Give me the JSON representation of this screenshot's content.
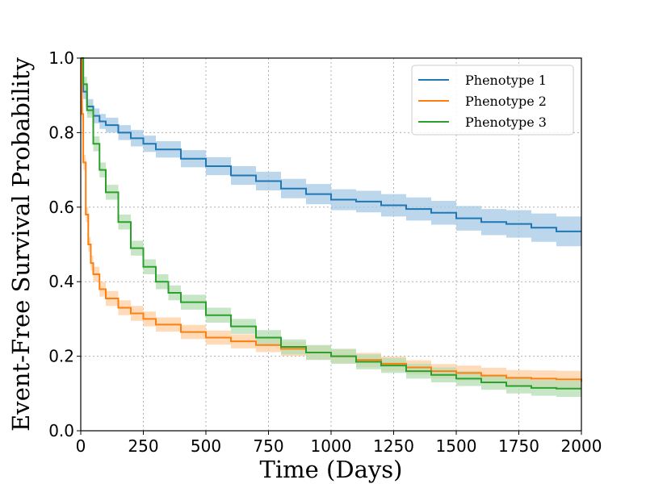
{
  "chart_data": {
    "type": "line",
    "title": "",
    "xlabel": "Time (Days)",
    "ylabel": "Event-Free Survival Probability",
    "xlim": [
      0,
      2000
    ],
    "ylim": [
      0.0,
      1.0
    ],
    "xticks": [
      0,
      250,
      500,
      750,
      1000,
      1250,
      1500,
      1750,
      2000
    ],
    "xtick_labels": [
      "0",
      "250",
      "500",
      "750",
      "1000",
      "1250",
      "1500",
      "1750",
      "2000"
    ],
    "yticks": [
      0.0,
      0.2,
      0.4,
      0.6,
      0.8,
      1.0
    ],
    "ytick_labels": [
      "0.0",
      "0.2",
      "0.4",
      "0.6",
      "0.8",
      "1.0"
    ],
    "grid": true,
    "legend_position": "top-right",
    "series": [
      {
        "name": "Phenotype 1",
        "color": "#1f77b4",
        "band_color": "#a6c8e4",
        "x": [
          0,
          10,
          25,
          50,
          75,
          100,
          150,
          200,
          250,
          300,
          400,
          500,
          600,
          700,
          800,
          900,
          1000,
          1100,
          1200,
          1300,
          1400,
          1500,
          1600,
          1700,
          1800,
          1900,
          2000
        ],
        "y": [
          1.0,
          0.91,
          0.87,
          0.845,
          0.83,
          0.82,
          0.8,
          0.785,
          0.77,
          0.755,
          0.73,
          0.71,
          0.685,
          0.67,
          0.65,
          0.635,
          0.62,
          0.615,
          0.605,
          0.595,
          0.585,
          0.57,
          0.56,
          0.555,
          0.545,
          0.535,
          0.535
        ],
        "lower": [
          1.0,
          0.89,
          0.85,
          0.825,
          0.81,
          0.8,
          0.78,
          0.763,
          0.748,
          0.733,
          0.707,
          0.686,
          0.66,
          0.645,
          0.624,
          0.608,
          0.592,
          0.586,
          0.575,
          0.564,
          0.553,
          0.537,
          0.525,
          0.518,
          0.507,
          0.495,
          0.493
        ],
        "upper": [
          1.0,
          0.93,
          0.89,
          0.865,
          0.85,
          0.84,
          0.82,
          0.807,
          0.792,
          0.777,
          0.753,
          0.734,
          0.71,
          0.695,
          0.676,
          0.662,
          0.648,
          0.644,
          0.635,
          0.626,
          0.617,
          0.603,
          0.595,
          0.592,
          0.583,
          0.575,
          0.577
        ]
      },
      {
        "name": "Phenotype 2",
        "color": "#ff7f0e",
        "band_color": "#ffcfa3",
        "x": [
          0,
          5,
          10,
          20,
          30,
          40,
          50,
          75,
          100,
          150,
          200,
          250,
          300,
          400,
          500,
          600,
          700,
          800,
          900,
          1000,
          1100,
          1200,
          1300,
          1400,
          1500,
          1600,
          1700,
          1800,
          1900,
          2000
        ],
        "y": [
          1.0,
          0.85,
          0.72,
          0.58,
          0.5,
          0.45,
          0.42,
          0.38,
          0.355,
          0.33,
          0.315,
          0.3,
          0.285,
          0.265,
          0.25,
          0.24,
          0.23,
          0.22,
          0.21,
          0.2,
          0.19,
          0.18,
          0.17,
          0.16,
          0.155,
          0.148,
          0.142,
          0.14,
          0.138,
          0.132
        ],
        "lower": [
          1.0,
          0.83,
          0.7,
          0.56,
          0.48,
          0.43,
          0.4,
          0.36,
          0.335,
          0.31,
          0.295,
          0.28,
          0.266,
          0.246,
          0.231,
          0.221,
          0.211,
          0.201,
          0.191,
          0.181,
          0.171,
          0.161,
          0.151,
          0.141,
          0.135,
          0.127,
          0.121,
          0.118,
          0.115,
          0.108
        ],
        "upper": [
          1.0,
          0.87,
          0.74,
          0.6,
          0.52,
          0.47,
          0.44,
          0.4,
          0.375,
          0.35,
          0.335,
          0.32,
          0.304,
          0.284,
          0.269,
          0.259,
          0.249,
          0.239,
          0.229,
          0.219,
          0.209,
          0.199,
          0.189,
          0.179,
          0.175,
          0.169,
          0.163,
          0.162,
          0.161,
          0.156
        ]
      },
      {
        "name": "Phenotype 3",
        "color": "#2ca02c",
        "band_color": "#b3deb3",
        "x": [
          0,
          10,
          25,
          50,
          75,
          100,
          150,
          200,
          250,
          300,
          350,
          400,
          500,
          600,
          700,
          800,
          900,
          1000,
          1100,
          1200,
          1300,
          1400,
          1500,
          1600,
          1700,
          1800,
          1900,
          2000
        ],
        "y": [
          1.0,
          0.93,
          0.86,
          0.77,
          0.7,
          0.64,
          0.56,
          0.49,
          0.44,
          0.4,
          0.37,
          0.345,
          0.31,
          0.28,
          0.25,
          0.225,
          0.21,
          0.2,
          0.185,
          0.175,
          0.16,
          0.15,
          0.14,
          0.13,
          0.12,
          0.115,
          0.113,
          0.113
        ],
        "lower": [
          1.0,
          0.91,
          0.84,
          0.75,
          0.68,
          0.62,
          0.54,
          0.47,
          0.42,
          0.38,
          0.35,
          0.325,
          0.29,
          0.26,
          0.23,
          0.205,
          0.19,
          0.18,
          0.165,
          0.155,
          0.14,
          0.13,
          0.12,
          0.11,
          0.1,
          0.094,
          0.091,
          0.09
        ],
        "upper": [
          1.0,
          0.95,
          0.88,
          0.79,
          0.72,
          0.66,
          0.58,
          0.51,
          0.46,
          0.42,
          0.39,
          0.365,
          0.33,
          0.3,
          0.27,
          0.245,
          0.23,
          0.22,
          0.205,
          0.195,
          0.18,
          0.17,
          0.16,
          0.15,
          0.14,
          0.136,
          0.135,
          0.136
        ]
      }
    ]
  }
}
